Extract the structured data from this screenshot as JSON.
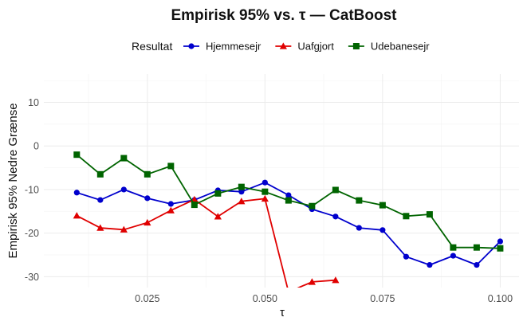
{
  "chart_data": {
    "type": "line",
    "title": "Empirisk 95% vs. τ — CatBoost",
    "xlabel": "τ",
    "ylabel": "Empirisk 95% Nedre Grænse",
    "legend_title": "Resultat",
    "legend_position": "top",
    "grid": true,
    "xlim": [
      0.003,
      0.104
    ],
    "ylim": [
      -32.5,
      16.5
    ],
    "x_ticks": [
      0.025,
      0.05,
      0.075,
      0.1
    ],
    "x_tick_labels": [
      "0.025",
      "0.050",
      "0.075",
      "0.100"
    ],
    "y_ticks": [
      10,
      0,
      -10,
      -20,
      -30
    ],
    "y_tick_labels": [
      "10",
      "0",
      "-10",
      "-20",
      "-30"
    ],
    "series": [
      {
        "name": "Hjemmesejr",
        "color": "#0000cd",
        "marker": "circle",
        "x": [
          0.01,
          0.015,
          0.02,
          0.025,
          0.03,
          0.035,
          0.04,
          0.045,
          0.05,
          0.055,
          0.06,
          0.065,
          0.07,
          0.075,
          0.08,
          0.085,
          0.09,
          0.095,
          0.1
        ],
        "y": [
          -10.7,
          -12.4,
          -10.0,
          -12.0,
          -13.3,
          -12.4,
          -10.2,
          -10.5,
          -8.4,
          -11.3,
          -14.5,
          -16.2,
          -18.8,
          -19.3,
          -25.4,
          -27.3,
          -25.2,
          -27.3,
          -21.9
        ]
      },
      {
        "name": "Uafgjort",
        "color": "#e00000",
        "marker": "triangle",
        "x": [
          0.01,
          0.015,
          0.02,
          0.025,
          0.03,
          0.035,
          0.04,
          0.045,
          0.05,
          0.055,
          0.06,
          0.065
        ],
        "y": [
          -16.0,
          -18.8,
          -19.2,
          -17.6,
          -14.8,
          -12.3,
          -16.2,
          -12.7,
          -12.1,
          -33.5,
          -31.2,
          -30.8
        ]
      },
      {
        "name": "Udebanesejr",
        "color": "#006400",
        "marker": "square",
        "x": [
          0.01,
          0.015,
          0.02,
          0.025,
          0.03,
          0.035,
          0.04,
          0.045,
          0.05,
          0.055,
          0.06,
          0.065,
          0.07,
          0.075,
          0.08,
          0.085,
          0.09,
          0.095,
          0.1
        ],
        "y": [
          -2.0,
          -6.5,
          -2.8,
          -6.5,
          -4.6,
          -13.5,
          -10.9,
          -9.4,
          -10.5,
          -12.5,
          -13.8,
          -10.1,
          -12.5,
          -13.6,
          -16.1,
          -15.7,
          -23.3,
          -23.3,
          -23.5
        ]
      }
    ]
  }
}
